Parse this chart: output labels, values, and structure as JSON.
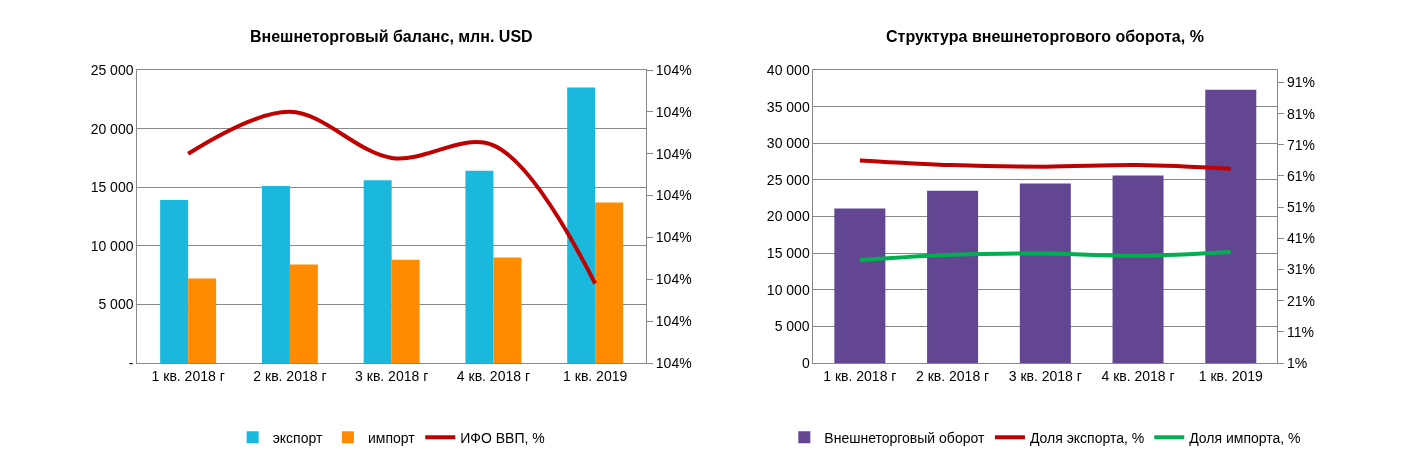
{
  "chart_data": [
    {
      "type": "bar",
      "title": "Внешнеторговый баланс, млн. USD",
      "categories": [
        "1 кв. 2018 г",
        "2 кв. 2018 г",
        "3 кв. 2018 г",
        "4 кв. 2018 г",
        "1 кв. 2019"
      ],
      "series": [
        {
          "name": "экспорт",
          "color": "#1ab8dc",
          "values": [
            13900,
            15100,
            15600,
            16400,
            23500
          ]
        },
        {
          "name": "импорт",
          "color": "#ff8c00",
          "values": [
            7200,
            8400,
            8800,
            9000,
            13700
          ]
        },
        {
          "name": "ИФО ВВП, %",
          "type": "line",
          "axis": "y2",
          "color": "#c00000",
          "values": [
            104.1,
            104.2,
            104.09,
            104.12,
            103.79
          ]
        }
      ],
      "ylim": [
        0,
        25000
      ],
      "yticks": [
        {
          "value": 0,
          "label": "-"
        },
        {
          "value": 5000,
          "label": "5 000"
        },
        {
          "value": 10000,
          "label": "10 000"
        },
        {
          "value": 15000,
          "label": "15 000"
        },
        {
          "value": 20000,
          "label": "20 000"
        },
        {
          "value": 25000,
          "label": "25 000"
        }
      ],
      "y2lim": [
        103.6,
        104.3
      ],
      "y2ticks": [
        {
          "value": 103.6,
          "label": "104%"
        },
        {
          "value": 103.7,
          "label": "104%"
        },
        {
          "value": 103.8,
          "label": "104%"
        },
        {
          "value": 103.9,
          "label": "104%"
        },
        {
          "value": 104.0,
          "label": "104%"
        },
        {
          "value": 104.1,
          "label": "104%"
        },
        {
          "value": 104.2,
          "label": "104%"
        },
        {
          "value": 104.3,
          "label": "104%"
        }
      ],
      "grid": "y",
      "legend": "bottom",
      "marker": "none",
      "line_style": "solid"
    },
    {
      "type": "bar",
      "title": "Структура внешнеторгового оборота, %",
      "categories": [
        "1 кв. 2018 г",
        "2 кв. 2018 г",
        "3 кв. 2018 г",
        "4 кв. 2018 г",
        "1 кв. 2019"
      ],
      "series": [
        {
          "name": "Внешнеторговый оборот",
          "color": "#634691",
          "values": [
            21100,
            23500,
            24500,
            25600,
            37300
          ]
        },
        {
          "name": "Доля экспорта, %",
          "type": "line",
          "axis": "y2",
          "color": "#c00000",
          "values": [
            66.0,
            64.5,
            64.0,
            64.5,
            63.3
          ]
        },
        {
          "name": "Доля импорта, %",
          "type": "line",
          "axis": "y2",
          "color": "#00b050",
          "values": [
            34.0,
            35.7,
            36.1,
            35.4,
            36.6
          ]
        }
      ],
      "ylim": [
        0,
        40000
      ],
      "yticks": [
        0,
        {
          "value": 5000,
          "label": "5 000"
        },
        {
          "value": 10000,
          "label": "10 000"
        },
        {
          "value": 15000,
          "label": "15 000"
        },
        {
          "value": 20000,
          "label": "20 000"
        },
        {
          "value": 25000,
          "label": "25 000"
        },
        {
          "value": 30000,
          "label": "30 000"
        },
        {
          "value": 35000,
          "label": "35 000"
        },
        {
          "value": 40000,
          "label": "40 000"
        }
      ],
      "y2lim": [
        1,
        95
      ],
      "y2ticks": [
        {
          "value": 1,
          "label": "1%"
        },
        {
          "value": 11,
          "label": "11%"
        },
        {
          "value": 21,
          "label": "21%"
        },
        {
          "value": 31,
          "label": "31%"
        },
        {
          "value": 41,
          "label": "41%"
        },
        {
          "value": 51,
          "label": "51%"
        },
        {
          "value": 61,
          "label": "61%"
        },
        {
          "value": 71,
          "label": "71%"
        },
        {
          "value": 81,
          "label": "81%"
        },
        {
          "value": 91,
          "label": "91%"
        }
      ],
      "grid": "y",
      "legend": "bottom",
      "marker": "none",
      "line_style": "solid"
    }
  ]
}
